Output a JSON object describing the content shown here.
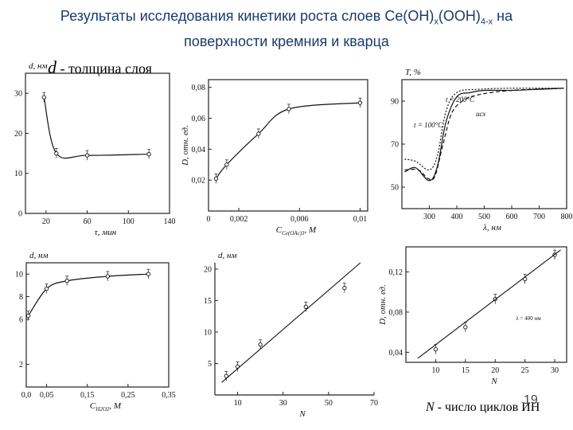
{
  "slide": {
    "title_line1_pre": "Результаты исследования кинетики роста слоев Ce(OH)",
    "title_sub_x": "x",
    "title_line1_mid": "(OOH)",
    "title_sub_4x": "4-x",
    "title_line1_post": " на",
    "title_line2": "поверхности кремния и кварца",
    "legend_symbol": "d",
    "legend_text": " - толщина слоя",
    "footer_symbol": "N",
    "footer_text": " - число циклов ИН",
    "page_number": "19"
  },
  "chart_data": [
    {
      "id": "chart1",
      "type": "line",
      "xlabel": "τ, мин",
      "ylabel": "d, нм",
      "xlim": [
        0,
        140
      ],
      "ylim": [
        0,
        35
      ],
      "xticks": [
        "20",
        "60",
        "100",
        "140"
      ],
      "yticks": [
        "0",
        "10",
        "20",
        "30"
      ],
      "series": [
        {
          "points": [
            [
              18,
              29
            ],
            [
              30,
              15
            ],
            [
              60,
              14.5
            ],
            [
              120,
              14.8
            ]
          ]
        }
      ]
    },
    {
      "id": "chart2",
      "type": "line",
      "xlabel": "C",
      "xlabel_sub": "Ce(OAc)3",
      "xlabel_unit": ", М",
      "ylabel": "D, отн. ед.",
      "xlim": [
        0,
        0.0105
      ],
      "ylim": [
        0,
        0.085
      ],
      "xticks": [
        "0",
        "0,002",
        "0,006",
        "0,01"
      ],
      "yticks": [
        "0,02",
        "0,04",
        "0,06",
        "0,08"
      ],
      "series": [
        {
          "points": [
            [
              0.0005,
              0.021
            ],
            [
              0.0012,
              0.03
            ],
            [
              0.0033,
              0.05
            ],
            [
              0.0053,
              0.066
            ],
            [
              0.01,
              0.07
            ]
          ]
        }
      ]
    },
    {
      "id": "chart3",
      "type": "line",
      "xlabel": "λ, нм",
      "ylabel": "T, %",
      "xlim": [
        200,
        800
      ],
      "ylim": [
        40,
        100
      ],
      "xticks": [
        "300",
        "400",
        "500",
        "600",
        "700",
        "800"
      ],
      "yticks": [
        "50",
        "70",
        "90"
      ],
      "series": [
        {
          "name": "t = 200°C",
          "points": [
            [
              210,
              57
            ],
            [
              250,
              59
            ],
            [
              300,
              53
            ],
            [
              330,
              60
            ],
            [
              360,
              80
            ],
            [
              400,
              92
            ],
            [
              450,
              94
            ],
            [
              500,
              95
            ],
            [
              600,
              95
            ],
            [
              700,
              95.5
            ],
            [
              790,
              96
            ]
          ]
        },
        {
          "name": "t = 100°C",
          "points": [
            [
              210,
              58
            ],
            [
              260,
              58
            ],
            [
              295,
              54
            ],
            [
              320,
              55
            ],
            [
              350,
              70
            ],
            [
              380,
              84
            ],
            [
              420,
              90
            ],
            [
              480,
              93
            ],
            [
              600,
              95
            ],
            [
              790,
              96
            ]
          ]
        },
        {
          "name": "исх",
          "points": [
            [
              210,
              63
            ],
            [
              250,
              62
            ],
            [
              300,
              58
            ],
            [
              330,
              65
            ],
            [
              360,
              85
            ],
            [
              400,
              94
            ],
            [
              480,
              95.5
            ],
            [
              600,
              96
            ],
            [
              790,
              96
            ]
          ]
        }
      ]
    },
    {
      "id": "chart4",
      "type": "line",
      "xlabel": "C",
      "xlabel_sub": "H2O2",
      "xlabel_unit": ", М",
      "ylabel": "d, нм",
      "xlim": [
        0,
        0.35
      ],
      "ylim": [
        0,
        11
      ],
      "xticks": [
        "0,0",
        "0,05",
        "0,15",
        "0,25",
        "0,35"
      ],
      "yticks": [
        "2",
        "6",
        "8",
        "10"
      ],
      "series": [
        {
          "points": [
            [
              0.005,
              6.3
            ],
            [
              0.05,
              8.7
            ],
            [
              0.1,
              9.4
            ],
            [
              0.2,
              9.8
            ],
            [
              0.3,
              10
            ]
          ]
        }
      ]
    },
    {
      "id": "chart5",
      "type": "scatter",
      "xlabel": "N",
      "ylabel": "d, нм",
      "xlim": [
        0,
        70
      ],
      "ylim": [
        0,
        21
      ],
      "xticks": [
        "10",
        "30",
        "50",
        "70"
      ],
      "yticks": [
        "5",
        "10",
        "15",
        "20"
      ],
      "series": [
        {
          "points": [
            [
              5,
              3
            ],
            [
              10,
              4.5
            ],
            [
              20,
              8
            ],
            [
              40,
              14
            ],
            [
              57,
              17
            ]
          ]
        }
      ]
    },
    {
      "id": "chart6",
      "type": "scatter",
      "xlabel": "N",
      "ylabel": "D, отн. ед.",
      "annotation": "λ = 400 нм",
      "xlim": [
        5,
        32
      ],
      "ylim": [
        0.03,
        0.145
      ],
      "xticks": [
        "10",
        "15",
        "20",
        "25",
        "30"
      ],
      "yticks": [
        "0,04",
        "0,08",
        "0,12"
      ],
      "series": [
        {
          "points": [
            [
              10,
              0.043
            ],
            [
              15,
              0.065
            ],
            [
              20,
              0.093
            ],
            [
              25,
              0.113
            ],
            [
              30,
              0.137
            ]
          ]
        }
      ]
    }
  ]
}
